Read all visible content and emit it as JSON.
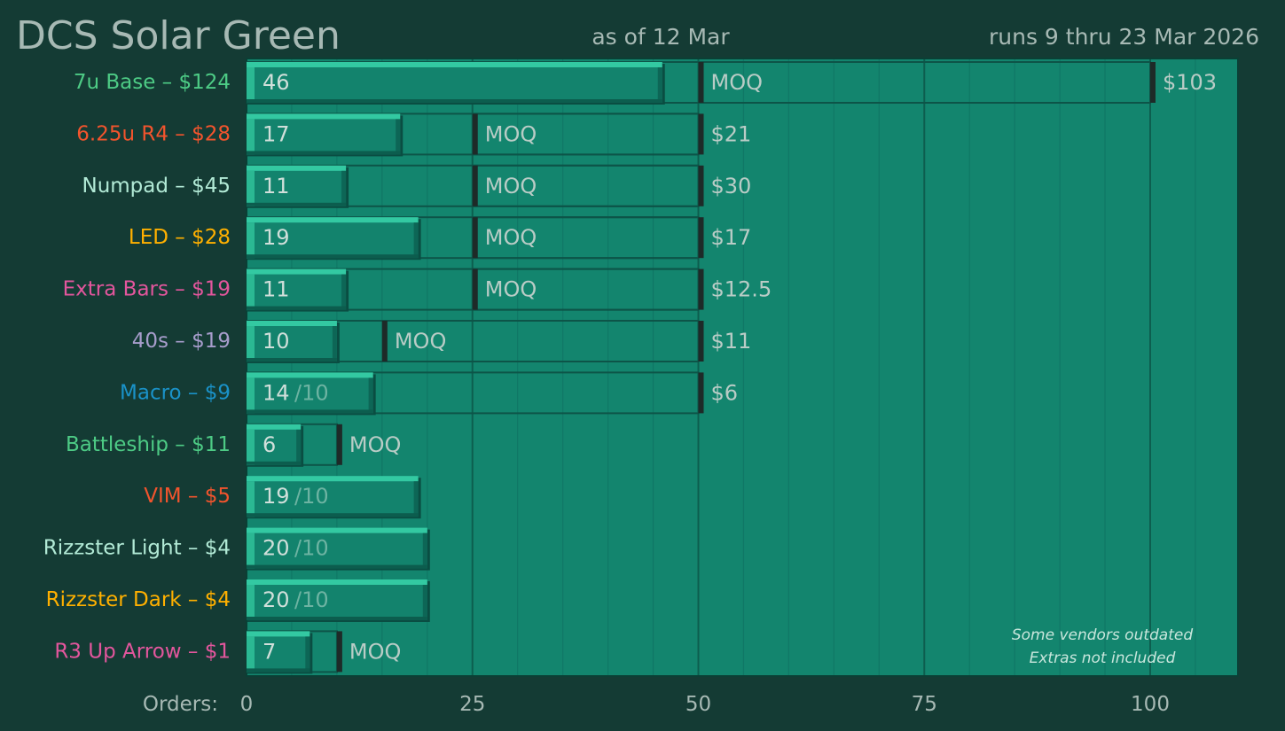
{
  "header": {
    "title": "DCS Solar Green",
    "as_of": "as of 12 Mar",
    "runs": "runs 9 thru 23 Mar 2026"
  },
  "note_lines": [
    "Some vendors outdated",
    "Extras not included"
  ],
  "orders_label": "Orders:",
  "chart_data": {
    "type": "bar",
    "orientation": "horizontal",
    "title": "DCS Solar Green",
    "xlabel": "Orders:",
    "xlim": [
      0,
      110
    ],
    "xticks": [
      0,
      25,
      50,
      75,
      100
    ],
    "grid": true,
    "moq_text": "MOQ",
    "rows": [
      {
        "label": "7u Base – $124",
        "color": "#4dcb85",
        "orders": 46,
        "moq_start": 50,
        "moq_end": 100,
        "target_text": "$103"
      },
      {
        "label": "6.25u R4 – $28",
        "color": "#f2542d",
        "orders": 17,
        "moq_start": 25,
        "moq_end": 50,
        "target_text": "$21"
      },
      {
        "label": "Numpad – $45",
        "color": "#b2ead6",
        "orders": 11,
        "moq_start": 25,
        "moq_end": 50,
        "target_text": "$30"
      },
      {
        "label": "LED – $28",
        "color": "#ffb000",
        "orders": 19,
        "moq_start": 25,
        "moq_end": 50,
        "target_text": "$17"
      },
      {
        "label": "Extra Bars – $19",
        "color": "#e3569d",
        "orders": 11,
        "moq_start": 25,
        "moq_end": 50,
        "target_text": "$12.5"
      },
      {
        "label": "40s – $19",
        "color": "#a79dcc",
        "orders": 10,
        "moq_start": 15,
        "moq_end": 50,
        "target_text": "$11"
      },
      {
        "label": "Macro – $9",
        "color": "#1a92c8",
        "orders": 14,
        "min_text": "/10",
        "moq_end": 50,
        "target_text": "$6"
      },
      {
        "label": "Battleship – $11",
        "color": "#4dcb85",
        "orders": 6,
        "moq_end": 10,
        "after_text": "MOQ"
      },
      {
        "label": "VIM – $5",
        "color": "#f2542d",
        "orders": 19,
        "min_text": "/10"
      },
      {
        "label": "Rizzster Light – $4",
        "color": "#b2ead6",
        "orders": 20,
        "min_text": "/10"
      },
      {
        "label": "Rizzster Dark – $4",
        "color": "#ffb000",
        "orders": 20,
        "min_text": "/10"
      },
      {
        "label": "R3 Up Arrow – $1",
        "color": "#e3569d",
        "orders": 7,
        "moq_end": 10,
        "after_text": "MOQ"
      }
    ]
  }
}
